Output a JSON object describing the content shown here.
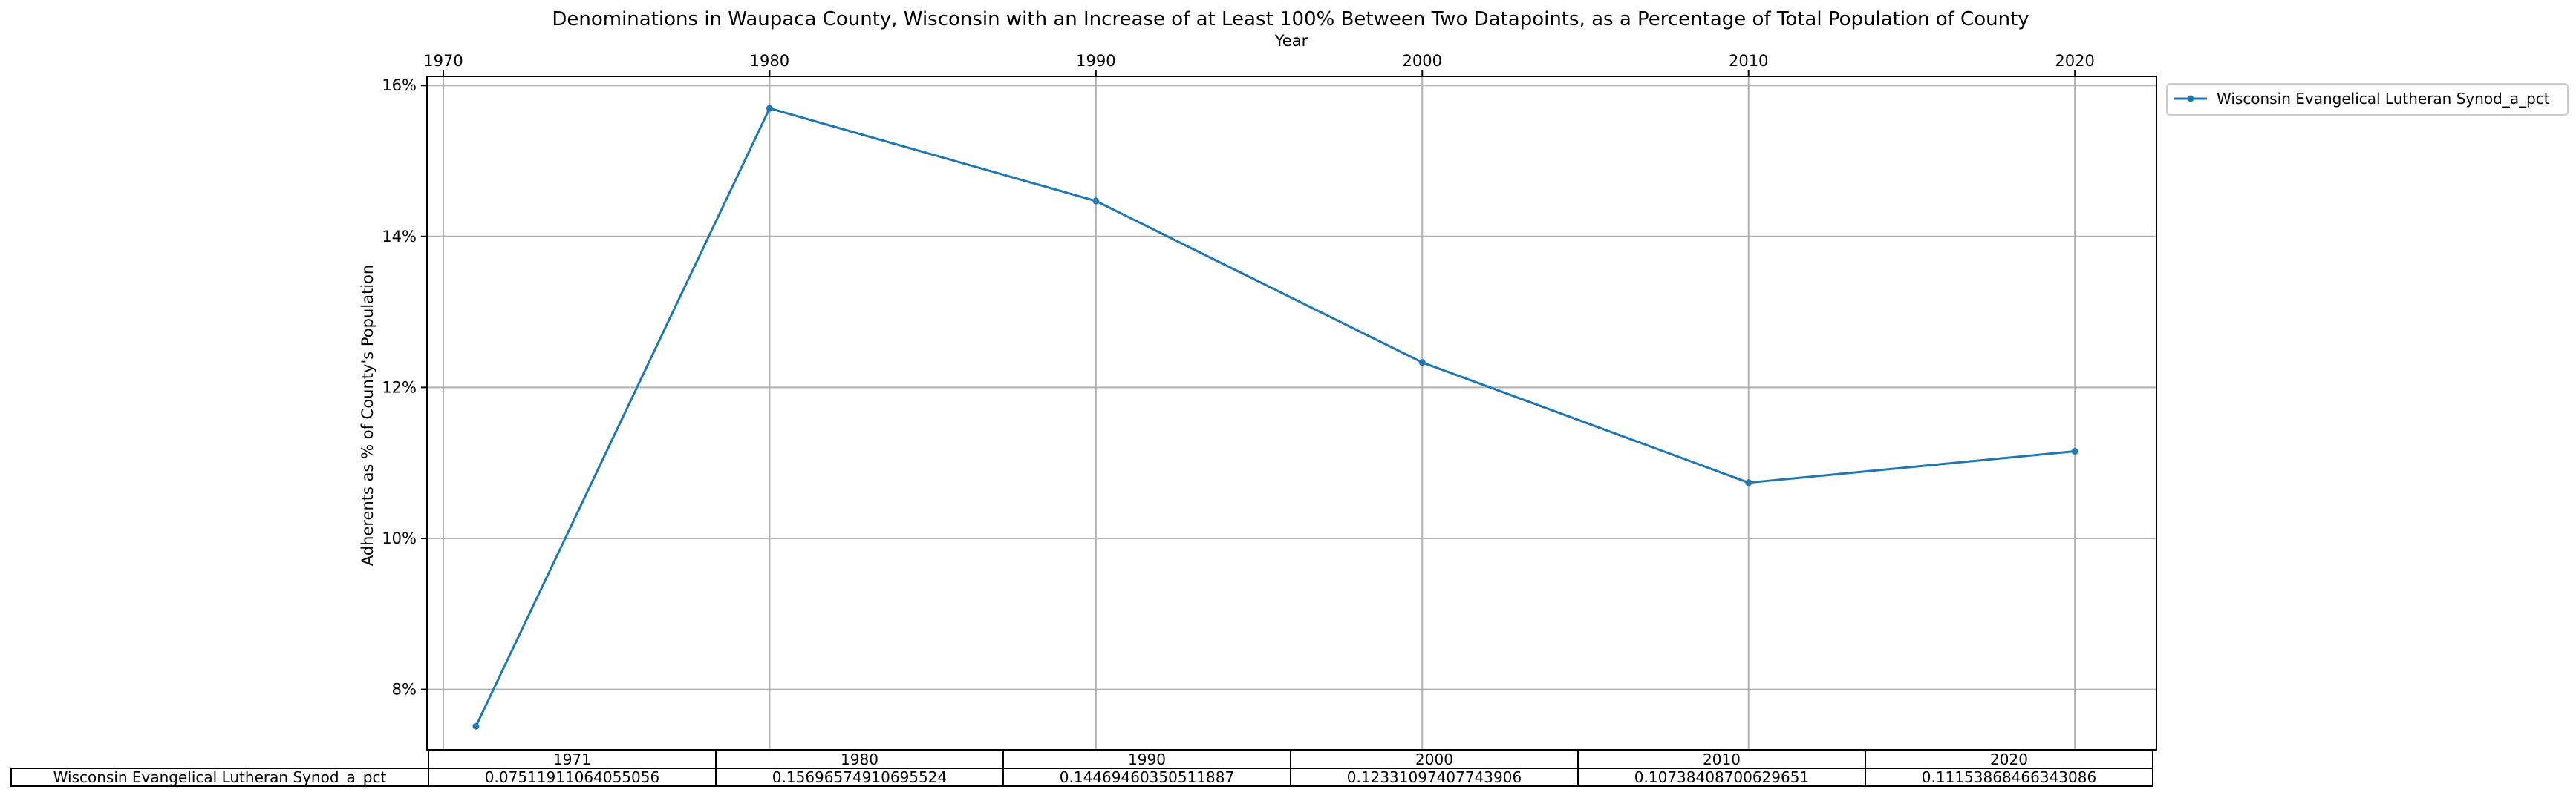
{
  "chart_data": {
    "type": "line",
    "title": "Denominations in Waupaca County, Wisconsin with an Increase of at Least 100% Between Two Datapoints, as a Percentage of Total Population of County",
    "xlabel": "Year",
    "ylabel": "Adherents as % of County's Population",
    "x": [
      1971,
      1980,
      1990,
      2000,
      2010,
      2020
    ],
    "x_ticks": [
      "1970",
      "1980",
      "1990",
      "2000",
      "2010",
      "2020"
    ],
    "x_axis_position": "top",
    "xlim": [
      1969.5,
      2022.5
    ],
    "y_ticks": [
      "8%",
      "10%",
      "12%",
      "14%",
      "16%"
    ],
    "ylim": [
      0.072,
      0.1612
    ],
    "grid": true,
    "legend_position": "outside-right-top",
    "series": [
      {
        "name": "Wisconsin Evangelical Lutheran Synod_a_pct",
        "color": "#1f77b4",
        "marker": "point",
        "values": [
          0.07511911064055056,
          0.15696574910695524,
          0.14469460350511887,
          0.12331097407743906,
          0.10738408700629651,
          0.11153868466343086
        ]
      }
    ],
    "table": {
      "columns": [
        "1971",
        "1980",
        "1990",
        "2000",
        "2010",
        "2020"
      ],
      "row_label": "Wisconsin Evangelical Lutheran Synod_a_pct",
      "cells": [
        "0.07511911064055056",
        "0.15696574910695524",
        "0.14469460350511887",
        "0.12331097407743906",
        "0.10738408700629651",
        "0.11153868466343086"
      ]
    }
  }
}
